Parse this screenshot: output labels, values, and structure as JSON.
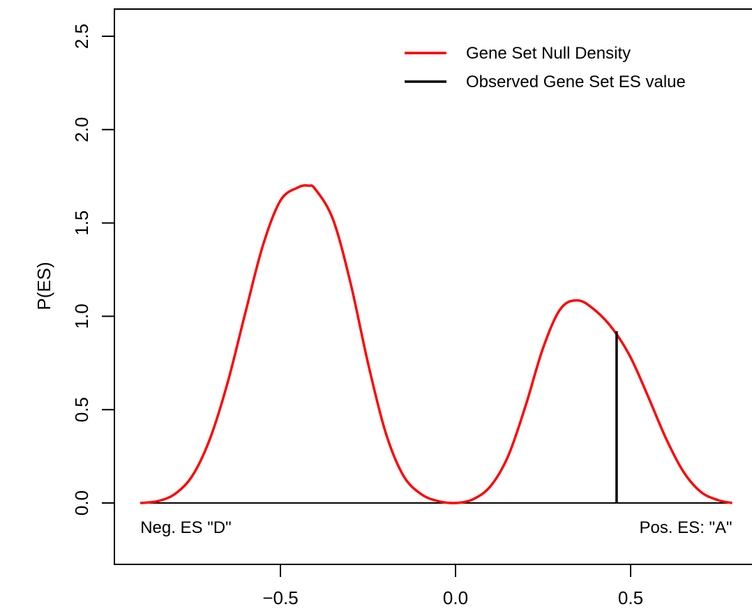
{
  "chart_data": {
    "type": "line",
    "title": "",
    "xlabel": "",
    "ylabel": "P(ES)",
    "xlim": [
      -0.97,
      0.85
    ],
    "ylim": [
      -0.32,
      2.6
    ],
    "x_ticks": [
      -0.5,
      0.0,
      0.5
    ],
    "x_tick_labels": [
      "−0.5",
      "0.0",
      "0.5"
    ],
    "y_ticks": [
      0.0,
      0.5,
      1.0,
      1.5,
      2.0,
      2.5
    ],
    "y_tick_labels": [
      "0.0",
      "0.5",
      "1.0",
      "1.5",
      "2.0",
      "2.5"
    ],
    "grid": false,
    "legend_position": "top-right",
    "series": [
      {
        "name": "Gene Set Null Density",
        "color": "#ff0000",
        "x": [
          -0.9,
          -0.85,
          -0.8,
          -0.75,
          -0.7,
          -0.65,
          -0.6,
          -0.55,
          -0.5,
          -0.45,
          -0.42,
          -0.4,
          -0.35,
          -0.3,
          -0.25,
          -0.2,
          -0.15,
          -0.1,
          -0.05,
          0.0,
          0.05,
          0.1,
          0.15,
          0.2,
          0.25,
          0.3,
          0.35,
          0.4,
          0.45,
          0.5,
          0.55,
          0.6,
          0.65,
          0.7,
          0.75,
          0.79
        ],
        "y": [
          0.0,
          0.01,
          0.05,
          0.15,
          0.35,
          0.65,
          1.02,
          1.38,
          1.62,
          1.69,
          1.7,
          1.68,
          1.52,
          1.18,
          0.75,
          0.38,
          0.15,
          0.05,
          0.01,
          0.0,
          0.02,
          0.09,
          0.25,
          0.52,
          0.83,
          1.04,
          1.085,
          1.03,
          0.93,
          0.78,
          0.57,
          0.35,
          0.17,
          0.06,
          0.015,
          0.0
        ]
      },
      {
        "name": "Observed Gene Set ES value",
        "color": "#000000",
        "x": [
          0.46,
          0.46
        ],
        "y": [
          0.0,
          0.92
        ]
      }
    ],
    "baseline": {
      "y": 0.0,
      "x_range": [
        -0.9,
        0.79
      ]
    },
    "annotations": [
      {
        "text": "Neg. ES \"D\"",
        "x": -0.9,
        "y": -0.13,
        "anchor": "start"
      },
      {
        "text": "Pos. ES: \"A\"",
        "x": 0.79,
        "y": -0.13,
        "anchor": "end"
      }
    ]
  }
}
